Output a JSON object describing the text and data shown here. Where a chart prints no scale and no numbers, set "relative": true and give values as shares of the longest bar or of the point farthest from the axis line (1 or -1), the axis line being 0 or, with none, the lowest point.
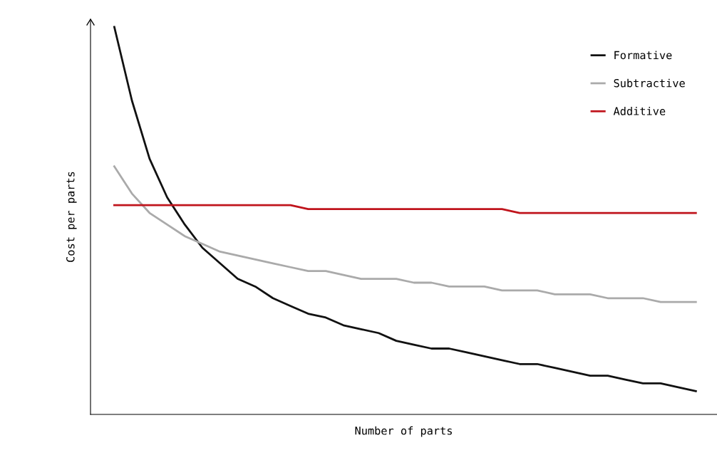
{
  "chart_data": {
    "type": "line",
    "relative": true,
    "xlabel": "Number of parts",
    "ylabel": "Cost per parts",
    "legend": "top right",
    "marker": "none",
    "line_style": "solid",
    "categories": [
      null,
      null,
      null,
      null,
      null,
      null,
      null,
      null,
      null,
      null,
      null,
      null,
      null,
      null,
      null,
      null,
      null,
      null,
      null,
      null,
      null,
      null,
      null,
      null,
      null,
      null,
      null,
      null,
      null,
      null,
      null,
      null,
      null,
      null
    ],
    "series": [
      {
        "name": "Formative",
        "color": "#111111",
        "values": [
          1,
          0.81,
          0.66,
          0.56,
          0.49,
          0.43,
          0.39,
          0.35,
          0.33,
          0.3,
          0.28,
          0.26,
          0.25,
          0.23,
          0.22,
          0.21,
          0.19,
          0.18,
          0.17,
          0.17,
          0.16,
          0.15,
          0.14,
          0.13,
          0.13,
          0.12,
          0.11,
          0.1,
          0.1,
          0.09,
          0.08,
          0.08,
          0.07,
          0.06
        ]
      },
      {
        "name": "Subtractive",
        "color": "#aaaaaa",
        "values": [
          0.64,
          0.57,
          0.52,
          0.49,
          0.46,
          0.44,
          0.42,
          0.41,
          0.4,
          0.39,
          0.38,
          0.37,
          0.37,
          0.36,
          0.35,
          0.35,
          0.35,
          0.34,
          0.34,
          0.33,
          0.33,
          0.33,
          0.32,
          0.32,
          0.32,
          0.31,
          0.31,
          0.31,
          0.3,
          0.3,
          0.3,
          0.29,
          0.29,
          0.29
        ]
      },
      {
        "name": "Additive",
        "color": "#c0141c",
        "values": [
          0.54,
          0.54,
          0.54,
          0.54,
          0.54,
          0.54,
          0.54,
          0.54,
          0.54,
          0.54,
          0.54,
          0.53,
          0.53,
          0.53,
          0.53,
          0.53,
          0.53,
          0.53,
          0.53,
          0.53,
          0.53,
          0.53,
          0.53,
          0.52,
          0.52,
          0.52,
          0.52,
          0.52,
          0.52,
          0.52,
          0.52,
          0.52,
          0.52,
          0.52
        ]
      }
    ]
  }
}
